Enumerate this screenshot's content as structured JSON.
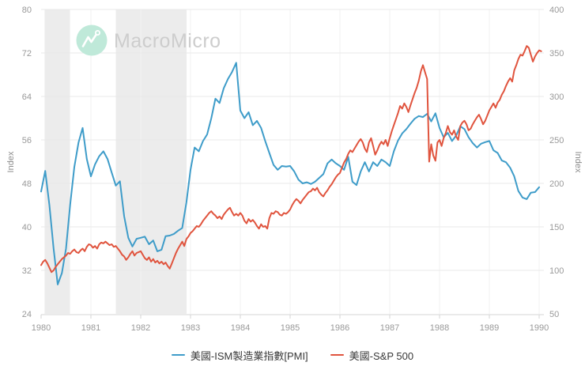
{
  "watermark": {
    "brand": "MacroMicro"
  },
  "colors": {
    "background": "#ffffff",
    "pmi_line": "#3E9CC9",
    "sp500_line": "#E0543E",
    "recession_band": "#ECECEC",
    "gridline": "#E9E9E9",
    "vertical_gridline": "#F2F2F2",
    "axis_line": "#D4D4D4",
    "tick_text": "#999999",
    "axis_title_text": "#8C8C8C",
    "legend_text": "#383838",
    "logo_circle": "#BFE9D9",
    "logo_mark": "#FFFFFF",
    "logo_text": "#CDCDCD"
  },
  "chart_data": {
    "type": "line",
    "title": "",
    "x_axis": {
      "ticks": [
        1980,
        1981,
        1982,
        1983,
        1984,
        1985,
        1986,
        1987,
        1988,
        1989,
        1990
      ],
      "range": [
        1980,
        1990.1
      ]
    },
    "left_axis": {
      "label": "Index",
      "min": 24,
      "max": 80,
      "ticks": [
        24,
        32,
        40,
        48,
        56,
        64,
        72,
        80
      ]
    },
    "right_axis": {
      "label": "Index",
      "min": 50,
      "max": 400,
      "ticks": [
        50,
        100,
        150,
        200,
        250,
        300,
        350,
        400
      ]
    },
    "recession_bands": [
      [
        1980.07,
        1980.58
      ],
      [
        1981.5,
        1982.92
      ]
    ],
    "legend_position": "bottom",
    "grid": true,
    "series": [
      {
        "name": "美國-ISM製造業指數[PMI]",
        "color": "#3E9CC9",
        "axis": "left",
        "x_start": 1980,
        "points_per_year": 12,
        "values": [
          46.5,
          50.3,
          44,
          36,
          29.4,
          31.5,
          36,
          44,
          51,
          55.5,
          58.2,
          52.5,
          49.3,
          51.5,
          53,
          53.9,
          52.5,
          50,
          47.6,
          48.4,
          42,
          38,
          36.4,
          37.8,
          38,
          38.2,
          36.8,
          37.5,
          35.5,
          35.8,
          38.3,
          38.4,
          38.7,
          39.3,
          39.8,
          44.5,
          50.5,
          54.6,
          53.9,
          55.8,
          57,
          60,
          63.6,
          62.8,
          65.5,
          67.2,
          68.5,
          70.2,
          61.4,
          60,
          61.1,
          58.7,
          59.5,
          58.2,
          55.8,
          53.6,
          51.4,
          50.5,
          51.2,
          51.1,
          51.2,
          50.2,
          48.7,
          48,
          48.2,
          47.9,
          48.3,
          49,
          49.7,
          51.7,
          52.4,
          51.7,
          51.2,
          50.5,
          52.9,
          48.3,
          47.7,
          50.2,
          51.9,
          50.2,
          51.9,
          51.2,
          52.4,
          51.9,
          51.2,
          53.9,
          55.9,
          57.2,
          58,
          59,
          59.9,
          60.4,
          60.2,
          60.8,
          59.4,
          60.9,
          58.2,
          56.5,
          57.3,
          55.8,
          56.8,
          58.5,
          58,
          56.5,
          55.4,
          54.6,
          55.3,
          55.6,
          55.8,
          54.1,
          53.6,
          52.2,
          51.9,
          50.9,
          49.3,
          46.6,
          45.4,
          45.1,
          46.3,
          46.4,
          47.3
        ]
      },
      {
        "name": "美國-S&P 500",
        "color": "#E0543E",
        "axis": "right",
        "x_start": 1980,
        "points_per_year": 24,
        "values": [
          106,
          110,
          112,
          108,
          103,
          98,
          100,
          104,
          107,
          110,
          113,
          115,
          117,
          120,
          119,
          122,
          124,
          121,
          120,
          123,
          125,
          122,
          127,
          130,
          129,
          126,
          128,
          125,
          130,
          132,
          131,
          133,
          131,
          129,
          130,
          127,
          128,
          125,
          122,
          118,
          116,
          112,
          115,
          119,
          122,
          117,
          120,
          121,
          122,
          118,
          114,
          112,
          115,
          110,
          113,
          109,
          111,
          108,
          110,
          107,
          109,
          105,
          102,
          108,
          114,
          120,
          125,
          129,
          133,
          128,
          136,
          139,
          143,
          145,
          148,
          151,
          150,
          153,
          157,
          160,
          163,
          166,
          168,
          165,
          163,
          160,
          162,
          159,
          164,
          167,
          170,
          172,
          167,
          163,
          165,
          163,
          166,
          163,
          157,
          154,
          159,
          156,
          158,
          155,
          151,
          148,
          153,
          150,
          151,
          148,
          160,
          166,
          165,
          168,
          167,
          164,
          163,
          166,
          165,
          167,
          170,
          175,
          179,
          182,
          180,
          177,
          181,
          184,
          187,
          190,
          191,
          194,
          192,
          195,
          190,
          187,
          185,
          189,
          192,
          196,
          199,
          203,
          207,
          210,
          212,
          218,
          224,
          228,
          234,
          238,
          236,
          240,
          244,
          248,
          251,
          247,
          240,
          236,
          247,
          252,
          243,
          233,
          238,
          244,
          248,
          245,
          250,
          243,
          252,
          260,
          267,
          274,
          281,
          289,
          286,
          292,
          288,
          282,
          290,
          297,
          304,
          310,
          318,
          329,
          336,
          328,
          320,
          225,
          245,
          232,
          226,
          247,
          250,
          243,
          252,
          258,
          266,
          259,
          256,
          261,
          254,
          250,
          266,
          270,
          272,
          268,
          261,
          263,
          268,
          272,
          276,
          279,
          274,
          268,
          272,
          278,
          284,
          288,
          292,
          287,
          293,
          296,
          302,
          306,
          312,
          317,
          321,
          317,
          330,
          336,
          343,
          348,
          347,
          352,
          358,
          356,
          348,
          340,
          346,
          350,
          353,
          352
        ]
      }
    ]
  }
}
